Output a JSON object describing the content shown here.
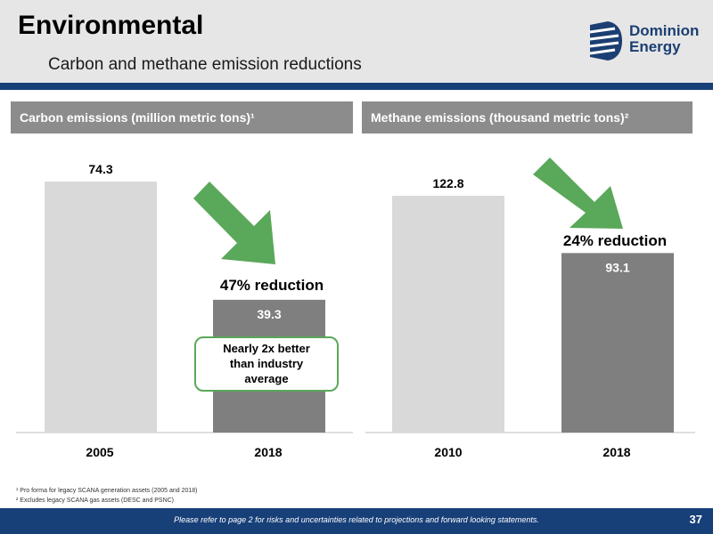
{
  "header": {
    "title": "Environmental",
    "subtitle": "Carbon and methane emission reductions",
    "logo_line1": "Dominion",
    "logo_line2": "Energy"
  },
  "colors": {
    "header_bg": "#e6e6e6",
    "brand_blue": "#173f78",
    "bar_light": "#d9d9d9",
    "bar_dark": "#7f7f7f",
    "arrow_green": "#5aa85a",
    "panel_header_bg": "#8c8c8c"
  },
  "chart_data": [
    {
      "type": "bar",
      "title": "Carbon emissions (million metric tons)¹",
      "categories": [
        "2005",
        "2018"
      ],
      "values": [
        74.3,
        39.3
      ],
      "value_labels": [
        "74.3",
        "39.3"
      ],
      "ylim": [
        0,
        80
      ],
      "grid": false,
      "annotation": "47% reduction",
      "callout": [
        "Nearly 2x better",
        "than industry",
        "average"
      ]
    },
    {
      "type": "bar",
      "title": "Methane emissions (thousand metric tons)²",
      "categories": [
        "2010",
        "2018"
      ],
      "values": [
        122.8,
        93.1
      ],
      "value_labels": [
        "122.8",
        "93.1"
      ],
      "ylim": [
        0,
        132
      ],
      "grid": false,
      "annotation": "24% reduction"
    }
  ],
  "footnotes": [
    "¹ Pro forma for legacy SCANA generation assets (2005 and 2018)",
    "² Excludes legacy SCANA gas assets (DESC and PSNC)"
  ],
  "footer": {
    "disclaimer": "Please refer to page 2 for risks and uncertainties related to projections and forward looking statements.",
    "page_number": "37"
  }
}
